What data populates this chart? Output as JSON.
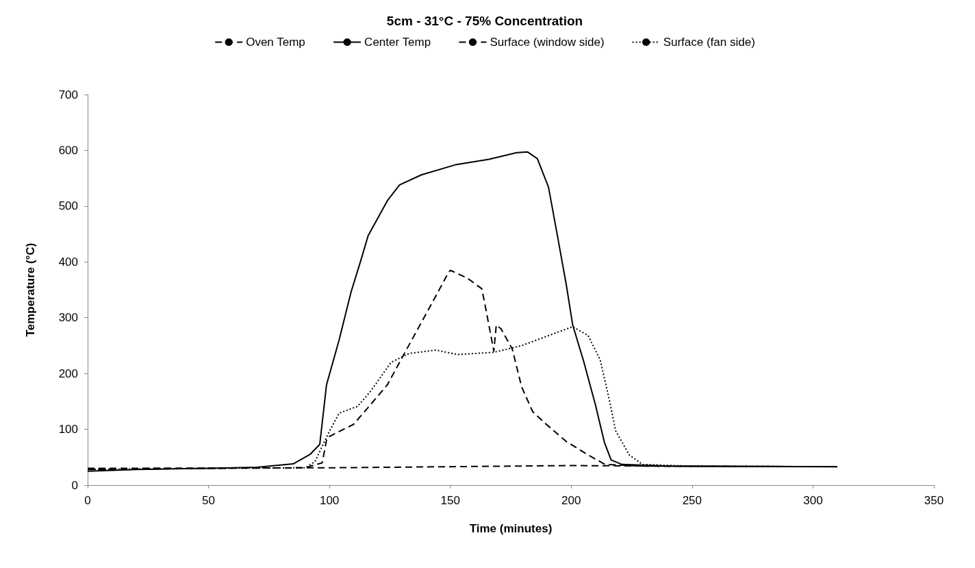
{
  "chart_data": {
    "type": "line",
    "title": "5cm - 31°C - 75% Concentration",
    "xlabel": "Time (minutes)",
    "ylabel": "Temperature (°C)",
    "xlim": [
      0,
      350
    ],
    "xticks": [
      0,
      50,
      100,
      150,
      200,
      250,
      300,
      350
    ],
    "ylim": [
      0,
      700
    ],
    "yticks": [
      0,
      100,
      200,
      300,
      400,
      500,
      600,
      700
    ],
    "grid": false,
    "legend": "top",
    "marker": "none",
    "series": [
      {
        "name": "Oven Temp",
        "color": "#000000",
        "line_style": "dashed",
        "x": [
          0,
          100,
          200,
          240,
          310
        ],
        "values": [
          30,
          31,
          35,
          34,
          33
        ]
      },
      {
        "name": "Center Temp",
        "color": "#000000",
        "line_style": "solid",
        "x": [
          0,
          20,
          50,
          70,
          85,
          92,
          96,
          98.8,
          104,
          109,
          113,
          116,
          124,
          129,
          138,
          152,
          166,
          177.5,
          182,
          186,
          190.6,
          194,
          198,
          200.6,
          205,
          210,
          213.7,
          216.5,
          221,
          240,
          310
        ],
        "values": [
          25,
          28,
          30,
          32,
          38,
          55,
          73,
          180,
          260,
          347,
          403,
          447,
          510,
          538,
          556,
          574,
          584,
          596,
          597,
          585,
          534,
          454,
          358,
          287,
          224,
          144,
          77,
          45,
          37,
          34,
          33
        ]
      },
      {
        "name": "Surface (window side)",
        "color": "#000000",
        "line_style": "dashed",
        "x": [
          0,
          50,
          90,
          97,
          99,
          110,
          114,
          124,
          131,
          140.5,
          149,
          150,
          157,
          163,
          164,
          168,
          169,
          171,
          175.6,
          179.5,
          184,
          188.6,
          198,
          207,
          214,
          230,
          310
        ],
        "values": [
          28,
          30,
          31,
          40,
          85,
          109,
          129,
          180,
          236,
          311,
          379,
          385,
          371,
          352,
          331,
          240,
          287,
          280,
          244,
          176,
          132,
          113,
          78,
          54,
          37,
          34,
          33
        ]
      },
      {
        "name": "Surface (fan side)",
        "color": "#000000",
        "line_style": "dotted",
        "x": [
          0,
          50,
          90,
          94,
          99.6,
          104,
          111.6,
          117,
          125.5,
          133,
          144,
          153,
          168,
          179.5,
          200.6,
          207,
          212,
          215.6,
          218.4,
          224,
          229.5,
          250,
          310
        ],
        "values": [
          28,
          30,
          31,
          42,
          93,
          129,
          141,
          168,
          220,
          236,
          242,
          234,
          238,
          250,
          284,
          268,
          224,
          156,
          97,
          54,
          37,
          34,
          33
        ]
      }
    ]
  }
}
